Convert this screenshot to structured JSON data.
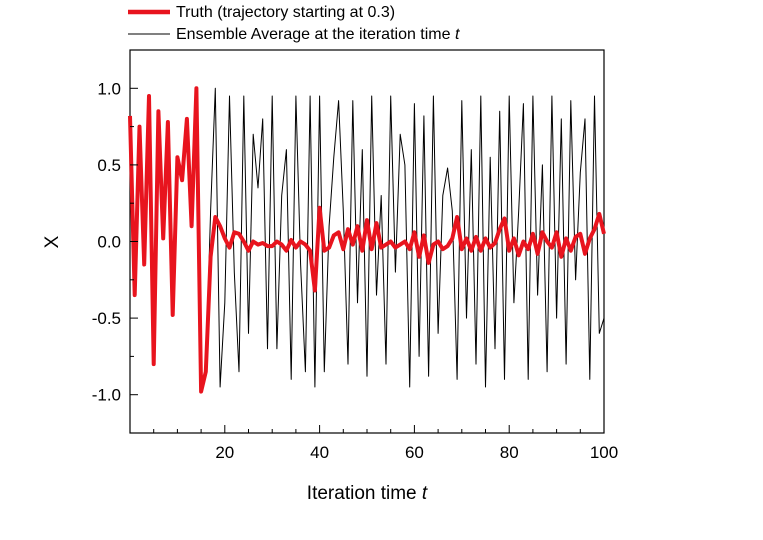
{
  "chart_data": {
    "type": "line",
    "xlabel": "Iteration time",
    "xlabel_var": "t",
    "ylabel": "X",
    "xlim": [
      0,
      100
    ],
    "ylim": [
      -1.25,
      1.25
    ],
    "xticks": [
      20,
      40,
      60,
      80,
      100
    ],
    "xtick_labels": [
      "20",
      "40",
      "60",
      "80",
      "100"
    ],
    "yticks": [
      1.0,
      0.5,
      0.0,
      -0.5,
      -1.0
    ],
    "ytick_labels": [
      "1.0",
      "0.5",
      "0.0",
      "-0.5",
      "-1.0"
    ],
    "grid": false,
    "legend_position": "top",
    "series": [
      {
        "name": "Truth (trajectory starting at 0.3)",
        "color": "#e8141e",
        "x": [
          0,
          1,
          2,
          3,
          4,
          5,
          6,
          7,
          8,
          9,
          10,
          11,
          12,
          13,
          14,
          15,
          16,
          17,
          18,
          19,
          20,
          21,
          22,
          23,
          24,
          25,
          26,
          27,
          28,
          29,
          30,
          31,
          32,
          33,
          34,
          35,
          36,
          37,
          38,
          39,
          40,
          41,
          42,
          43,
          44,
          45,
          46,
          47,
          48,
          49,
          50,
          51,
          52,
          53,
          54,
          55,
          56,
          57,
          58,
          59,
          60,
          61,
          62,
          63,
          64,
          65,
          66,
          67,
          68,
          69,
          70,
          71,
          72,
          73,
          74,
          75,
          76,
          77,
          78,
          79,
          80,
          81,
          82,
          83,
          84,
          85,
          86,
          87,
          88,
          89,
          90,
          91,
          92,
          93,
          94,
          95,
          96,
          97,
          98,
          99,
          100
        ],
        "values": [
          0.82,
          -0.35,
          0.75,
          -0.15,
          0.95,
          -0.8,
          0.85,
          0.02,
          0.78,
          -0.48,
          0.55,
          0.4,
          0.8,
          0.1,
          1.0,
          -0.98,
          -0.85,
          -0.1,
          0.16,
          0.1,
          0.02,
          -0.04,
          0.06,
          0.05,
          0.0,
          -0.06,
          0.0,
          -0.02,
          -0.01,
          -0.03,
          -0.03,
          0.0,
          -0.02,
          -0.06,
          0.01,
          -0.04,
          0.0,
          -0.02,
          -0.06,
          -0.32,
          0.22,
          -0.06,
          -0.04,
          0.04,
          0.06,
          -0.05,
          0.08,
          -0.02,
          0.1,
          -0.06,
          0.14,
          -0.05,
          0.12,
          -0.04,
          -0.02,
          0.0,
          -0.04,
          -0.02,
          0.0,
          -0.05,
          0.06,
          -0.1,
          0.04,
          -0.14,
          -0.02,
          0.0,
          -0.05,
          -0.03,
          0.02,
          0.16,
          -0.05,
          0.02,
          -0.06,
          0.03,
          -0.06,
          0.02,
          -0.04,
          -0.01,
          0.08,
          0.15,
          -0.06,
          0.02,
          -0.09,
          0.0,
          -0.05,
          0.05,
          -0.08,
          0.06,
          0.0,
          -0.04,
          0.06,
          -0.1,
          0.02,
          -0.06,
          0.03,
          0.05,
          -0.08,
          0.02,
          0.08,
          0.18,
          0.05
        ]
      },
      {
        "name": "Ensemble Average at the iteration time",
        "name_var": "t",
        "color": "#000000",
        "x": [
          0,
          1,
          2,
          3,
          4,
          5,
          6,
          7,
          8,
          9,
          10,
          11,
          12,
          13,
          14,
          15,
          16,
          17,
          18,
          19,
          20,
          21,
          22,
          23,
          24,
          25,
          26,
          27,
          28,
          29,
          30,
          31,
          32,
          33,
          34,
          35,
          36,
          37,
          38,
          39,
          40,
          41,
          42,
          43,
          44,
          45,
          46,
          47,
          48,
          49,
          50,
          51,
          52,
          53,
          54,
          55,
          56,
          57,
          58,
          59,
          60,
          61,
          62,
          63,
          64,
          65,
          66,
          67,
          68,
          69,
          70,
          71,
          72,
          73,
          74,
          75,
          76,
          77,
          78,
          79,
          80,
          81,
          82,
          83,
          84,
          85,
          86,
          87,
          88,
          89,
          90,
          91,
          92,
          93,
          94,
          95,
          96,
          97,
          98,
          99,
          100
        ],
        "values": [
          0.82,
          -0.35,
          0.75,
          -0.15,
          0.95,
          -0.8,
          0.85,
          0.02,
          0.78,
          -0.48,
          0.55,
          0.4,
          0.8,
          0.1,
          1.0,
          -0.98,
          -0.85,
          0.2,
          1.0,
          -0.95,
          -0.4,
          0.95,
          -0.2,
          -0.85,
          0.95,
          -0.6,
          0.7,
          0.35,
          0.8,
          -0.7,
          0.95,
          -0.7,
          0.3,
          0.6,
          -0.9,
          0.95,
          -0.15,
          -0.85,
          0.95,
          -0.95,
          0.95,
          -0.85,
          0.1,
          0.55,
          0.92,
          0.2,
          -0.8,
          0.92,
          -0.4,
          0.6,
          -0.88,
          0.95,
          -0.35,
          0.3,
          -0.8,
          0.95,
          -0.2,
          0.7,
          0.5,
          -0.95,
          0.9,
          -0.75,
          0.82,
          -0.88,
          0.95,
          -0.6,
          0.3,
          0.48,
          0.2,
          -0.9,
          0.92,
          -0.5,
          0.6,
          -0.8,
          0.95,
          -0.95,
          0.55,
          -0.7,
          0.85,
          -0.9,
          0.95,
          -0.4,
          0.2,
          0.9,
          -0.9,
          0.95,
          -0.35,
          0.5,
          -0.85,
          0.95,
          -0.5,
          0.8,
          -0.8,
          0.92,
          -0.25,
          0.45,
          0.8,
          -0.9,
          0.95,
          -0.6,
          -0.5
        ]
      }
    ]
  }
}
